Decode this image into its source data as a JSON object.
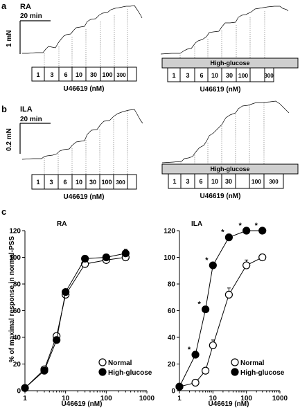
{
  "panels": {
    "a": {
      "letter": "a",
      "vessel": "RA",
      "time_scale": "20 min",
      "force_scale": "1 mN",
      "normal_concentrations": [
        "1",
        "3",
        "6",
        "10",
        "30",
        "100",
        "300"
      ],
      "glucose_concentrations": [
        "1",
        "3",
        "6",
        "10",
        "30",
        "100",
        "300"
      ],
      "condition_bar": "High-glucose",
      "axis_label": "U46619 (nM)"
    },
    "b": {
      "letter": "b",
      "vessel": "ILA",
      "time_scale": "20 min",
      "force_scale": "0.2 mN",
      "normal_concentrations": [
        "1",
        "3",
        "6",
        "10",
        "30",
        "100",
        "300"
      ],
      "glucose_concentrations": [
        "1",
        "3",
        "6",
        "10",
        "30",
        "100",
        "300"
      ],
      "condition_bar": "High-glucose",
      "axis_label": "U46619 (nM)"
    },
    "c": {
      "letter": "c"
    }
  },
  "chart_data": [
    {
      "type": "scatter",
      "subtitle": "RA",
      "xlabel": "U46619 (nM)",
      "ylabel": "% of maximal response in normal-PSS",
      "x_scale": "log",
      "xlim": [
        1,
        1000
      ],
      "ylim": [
        0,
        120
      ],
      "x_ticks": [
        "1",
        "10",
        "100",
        "1000"
      ],
      "y_ticks": [
        "0",
        "20",
        "40",
        "60",
        "80",
        "100",
        "120"
      ],
      "grid": false,
      "legend_position": "bottom-right",
      "series": [
        {
          "name": "Normal",
          "marker": "open-circle",
          "x": [
            1,
            3,
            6,
            10,
            30,
            100,
            300
          ],
          "y": [
            2,
            16,
            41,
            72,
            95,
            98,
            100
          ],
          "error": [
            0,
            1,
            2,
            2,
            4,
            2,
            2
          ]
        },
        {
          "name": "High-glucose",
          "marker": "filled-circle",
          "x": [
            1,
            3,
            6,
            10,
            30,
            100,
            300
          ],
          "y": [
            2,
            15,
            38,
            74,
            99,
            100,
            103
          ],
          "error": [
            0,
            1,
            1,
            1,
            1,
            1,
            3
          ]
        }
      ]
    },
    {
      "type": "scatter",
      "subtitle": "ILA",
      "xlabel": "U46619 (nM)",
      "x_scale": "log",
      "xlim": [
        1,
        1000
      ],
      "ylim": [
        0,
        120
      ],
      "x_ticks": [
        "1",
        "10",
        "100",
        "1000"
      ],
      "y_ticks": [
        "0",
        "20",
        "40",
        "60",
        "80",
        "100",
        "120"
      ],
      "grid": false,
      "legend_position": "bottom-right",
      "significance_marker": "*",
      "series": [
        {
          "name": "Normal",
          "marker": "open-circle",
          "x": [
            1,
            3,
            6,
            10,
            30,
            100,
            300
          ],
          "y": [
            3,
            6,
            15,
            34,
            72,
            94,
            100
          ],
          "error": [
            0,
            1,
            1,
            4,
            5,
            4,
            1
          ]
        },
        {
          "name": "High-glucose",
          "marker": "filled-circle",
          "x": [
            1,
            3,
            6,
            10,
            30,
            100,
            300
          ],
          "y": [
            3,
            27,
            61,
            94,
            115,
            120,
            120
          ],
          "error": [
            0,
            1,
            2,
            2,
            2,
            1,
            1
          ],
          "significant": [
            false,
            true,
            true,
            true,
            true,
            true,
            true
          ]
        }
      ]
    }
  ]
}
